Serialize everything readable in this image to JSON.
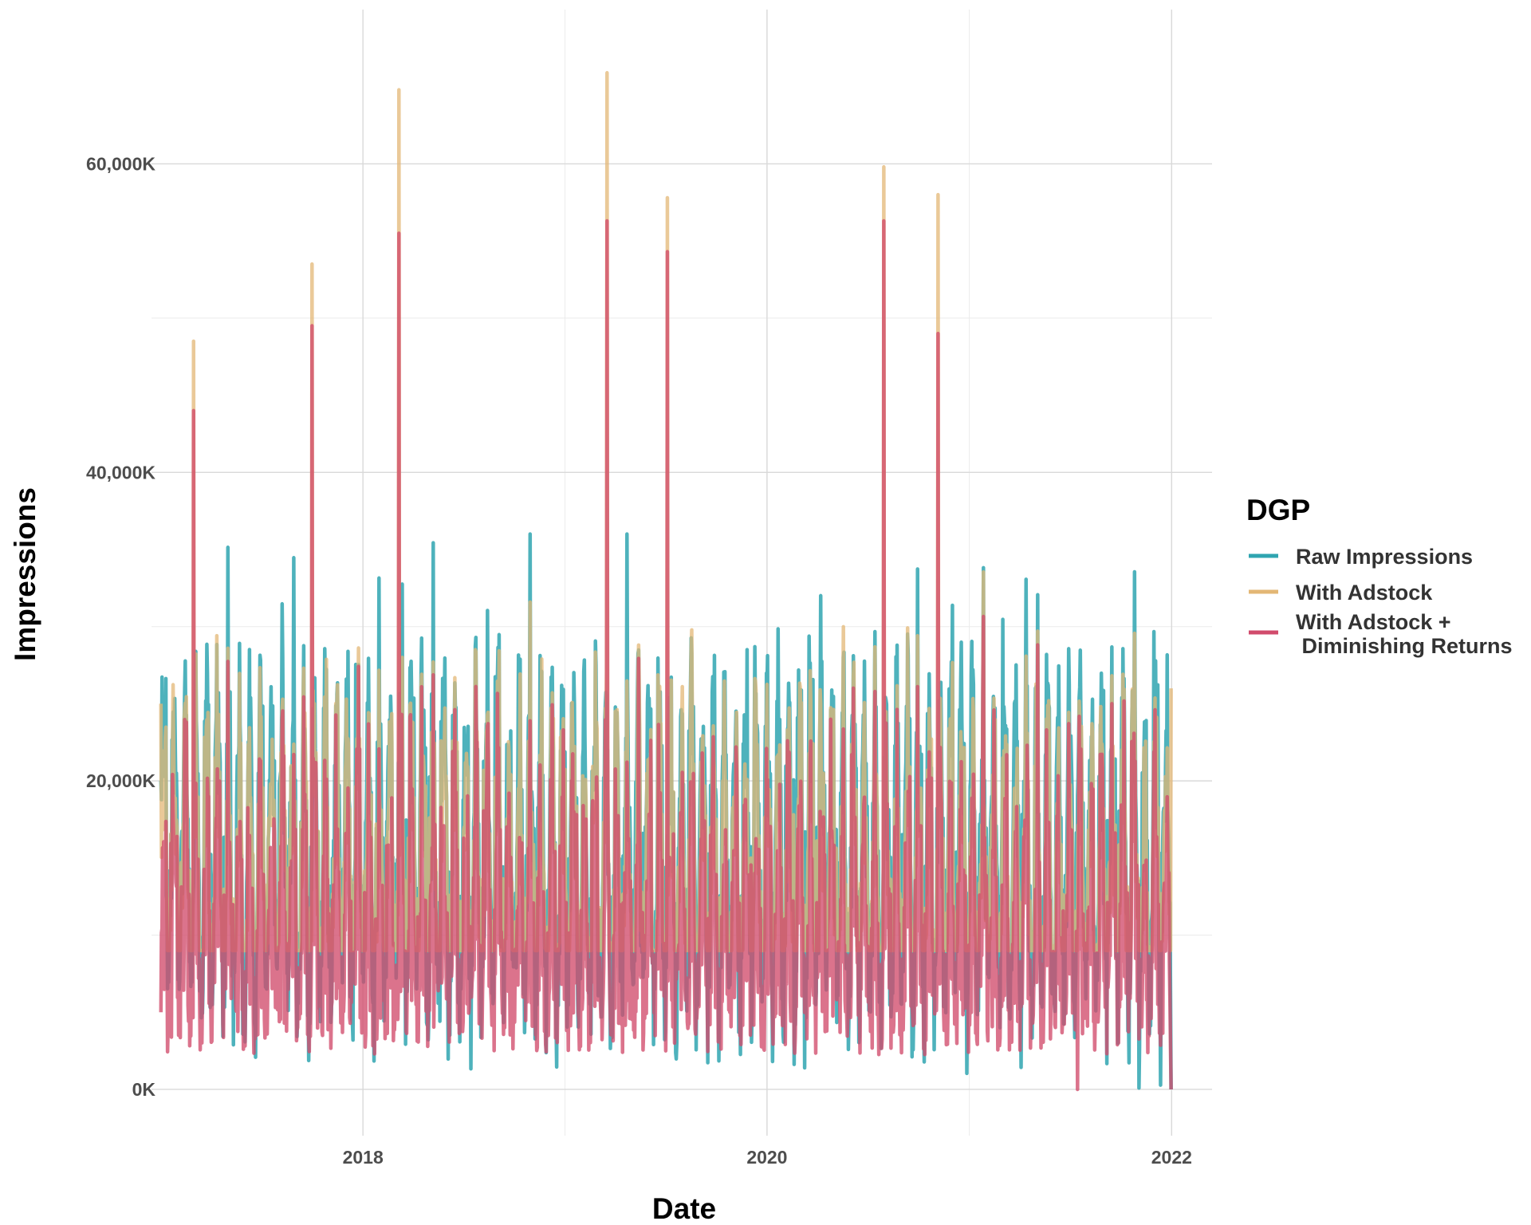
{
  "chart_data": {
    "type": "line",
    "xlabel": "Date",
    "ylabel": "Impressions",
    "x_range": [
      "2016-12-15",
      "2022-03-15"
    ],
    "ylim": [
      -3000,
      70000
    ],
    "x_ticks": [
      {
        "date": "2018-01-01",
        "label": "2018"
      },
      {
        "date": "2020-01-01",
        "label": "2020"
      },
      {
        "date": "2022-01-01",
        "label": "2022"
      }
    ],
    "y_ticks": [
      {
        "value": 0,
        "label": "0K"
      },
      {
        "value": 20000,
        "label": "20,000K"
      },
      {
        "value": 40000,
        "label": "40,000K"
      },
      {
        "value": 60000,
        "label": "60,000K"
      }
    ],
    "grid": true,
    "legend": {
      "title": "DGP",
      "position": "right",
      "entries": [
        {
          "label": "Raw Impressions",
          "color": "#2fa5b0"
        },
        {
          "label": "With Adstock",
          "color": "#e3b775"
        },
        {
          "label_lines": [
            "With Adstock +",
            " Diminishing Returns"
          ],
          "color": "#d14b6c"
        }
      ]
    },
    "date_start": "2017-01-01",
    "date_end": "2021-12-31",
    "frequency": "daily",
    "series": [
      {
        "name": "Raw Impressions",
        "color": "#2fa5b0",
        "values_sample": [
          {
            "date": "2017-01-01",
            "value": 20000
          },
          {
            "date": "2017-04-15",
            "value": 36000
          },
          {
            "date": "2018-01-15",
            "value": 36000
          },
          {
            "date": "2018-03-10",
            "value": 30000
          },
          {
            "date": "2019-04-01",
            "value": 33000
          },
          {
            "date": "2020-05-01",
            "value": 26000
          },
          {
            "date": "2021-06-01",
            "value": 25000
          },
          {
            "date": "2021-12-31",
            "value": 0
          }
        ]
      },
      {
        "name": "With Adstock",
        "color": "#e3b775",
        "values_sample": [
          {
            "date": "2017-01-01",
            "value": 25000
          },
          {
            "date": "2017-03-01",
            "value": 48500
          },
          {
            "date": "2017-10-01",
            "value": 53500
          },
          {
            "date": "2018-03-07",
            "value": 64800
          },
          {
            "date": "2019-03-18",
            "value": 65900
          },
          {
            "date": "2019-07-05",
            "value": 57800
          },
          {
            "date": "2020-07-30",
            "value": 59800
          },
          {
            "date": "2020-11-05",
            "value": 58000
          },
          {
            "date": "2021-12-31",
            "value": 26000
          }
        ]
      },
      {
        "name": "With Adstock + Diminishing Returns",
        "color": "#d14b6c",
        "values_sample": [
          {
            "date": "2017-01-01",
            "value": 5000
          },
          {
            "date": "2017-03-01",
            "value": 44000
          },
          {
            "date": "2017-10-01",
            "value": 49500
          },
          {
            "date": "2018-03-07",
            "value": 55500
          },
          {
            "date": "2019-03-18",
            "value": 56300
          },
          {
            "date": "2019-07-05",
            "value": 54300
          },
          {
            "date": "2020-07-30",
            "value": 56300
          },
          {
            "date": "2020-11-05",
            "value": 49000
          },
          {
            "date": "2021-07-15",
            "value": 0
          },
          {
            "date": "2021-12-31",
            "value": 0
          }
        ]
      }
    ]
  }
}
